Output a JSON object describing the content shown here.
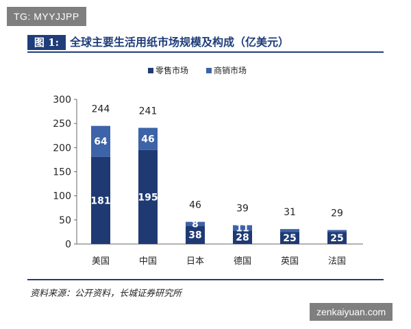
{
  "watermarks": {
    "top": "TG: MYYJJPP",
    "bottom": "zenkaiyuan.com"
  },
  "figure": {
    "label": "图 1:",
    "title": "全球主要生活用纸市场规模及构成（亿美元）"
  },
  "source": "资料来源：公开资料，长城证券研究所",
  "colors": {
    "retail": "#1f3a73",
    "commercial": "#3d63a8",
    "title": "#1f3d7a"
  },
  "chart_data": {
    "type": "bar",
    "stacked": true,
    "categories": [
      "美国",
      "中国",
      "日本",
      "德国",
      "英国",
      "法国"
    ],
    "series": [
      {
        "name": "零售市场",
        "values": [
          181,
          195,
          38,
          28,
          25,
          25
        ]
      },
      {
        "name": "商销市场",
        "values": [
          64,
          46,
          8,
          11,
          6,
          4
        ]
      }
    ],
    "segment_labels": [
      [
        "181",
        "195",
        "38",
        "28",
        "25",
        "25"
      ],
      [
        "64",
        "46",
        "8",
        "11",
        "",
        ""
      ]
    ],
    "totals": [
      244,
      241,
      46,
      39,
      31,
      29
    ],
    "yticks": [
      0,
      50,
      100,
      150,
      200,
      250,
      300
    ],
    "ylim": [
      0,
      300
    ],
    "legend_position": "top",
    "grid": false
  }
}
